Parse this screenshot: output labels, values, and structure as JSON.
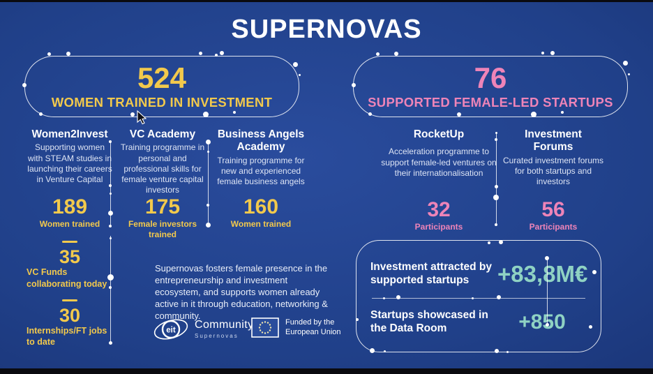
{
  "title": "SUPERNOVAS",
  "colors": {
    "yellow": "#f2c94c",
    "pink": "#ee84b8",
    "teal": "#8fd2c3",
    "background_blue": "#204089"
  },
  "left_banner": {
    "value": "524",
    "label": "WOMEN TRAINED IN INVESTMENT"
  },
  "right_banner": {
    "value": "76",
    "label": "SUPPORTED FEMALE-LED STARTUPS"
  },
  "programs": [
    {
      "name": "Women2Invest",
      "description": "Supporting women with STEAM studies in launching their careers in Venture Capital",
      "value": "189",
      "value_label": "Women trained"
    },
    {
      "name": "VC Academy",
      "description": "Training programme in personal and professional skills for female venture capital investors",
      "value": "175",
      "value_label": "Female investors trained"
    },
    {
      "name": "Business Angels Academy",
      "description": "Training programme for new and experienced female business angels",
      "value": "160",
      "value_label": "Women trained"
    }
  ],
  "extra_stats": [
    {
      "value": "35",
      "label": "VC Funds collaborating today"
    },
    {
      "value": "30",
      "label": "Internships/FT jobs to date"
    }
  ],
  "mission": "Supernovas fosters female presence in the entrepreneurship and investment ecosystem, and supports women already active in it through education, networking & community.",
  "logos": {
    "eit_circle": "eit",
    "community": "Community",
    "supernovas": "Supernovas",
    "eu_line1": "Funded by the",
    "eu_line2": "European Union"
  },
  "startup_programs": [
    {
      "name": "RocketUp",
      "description": "Acceleration programme to support female-led ventures on their internationalisation",
      "value": "32",
      "value_label": "Participants"
    },
    {
      "name": "Investment Forums",
      "description": "Curated investment forums for both startups and investors",
      "value": "56",
      "value_label": "Participants"
    }
  ],
  "results": [
    {
      "label": "Investment attracted by supported startups",
      "value": "+83,8M€"
    },
    {
      "label": "Startups showcased in the Data Room",
      "value": "+850"
    }
  ],
  "chart_data": {
    "type": "table",
    "title": "SUPERNOVAS",
    "metrics": [
      {
        "label": "Women trained in investment",
        "value": 524
      },
      {
        "label": "Supported female-led startups",
        "value": 76
      },
      {
        "label": "Women2Invest – Women trained",
        "value": 189
      },
      {
        "label": "VC Academy – Female investors trained",
        "value": 175
      },
      {
        "label": "Business Angels Academy – Women trained",
        "value": 160
      },
      {
        "label": "VC Funds collaborating today",
        "value": 35
      },
      {
        "label": "Internships/FT jobs to date",
        "value": 30
      },
      {
        "label": "RocketUp – Participants",
        "value": 32
      },
      {
        "label": "Investment Forums – Participants",
        "value": 56
      },
      {
        "label": "Investment attracted by supported startups",
        "value": "+83,8M€"
      },
      {
        "label": "Startups showcased in the Data Room",
        "value": "+850"
      }
    ]
  }
}
